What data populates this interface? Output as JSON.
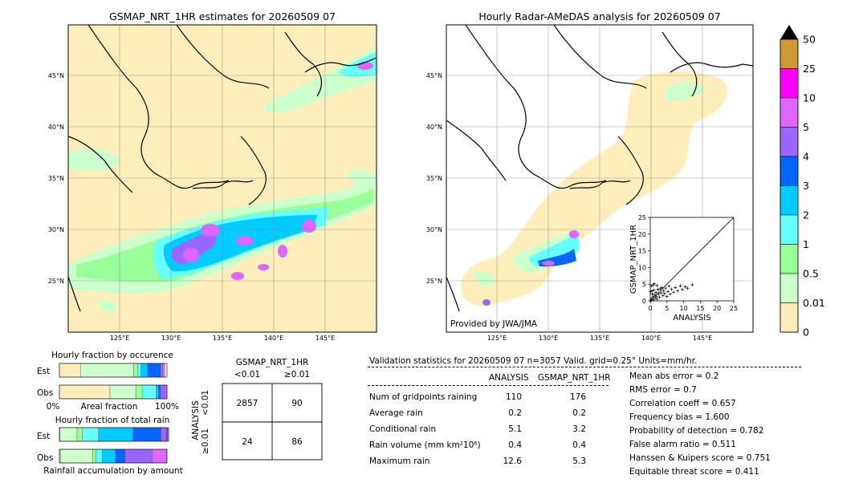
{
  "left_map": {
    "title": "GSMAP_NRT_1HR estimates for 20260509 07",
    "lat_labels": [
      "45°N",
      "40°N",
      "35°N",
      "30°N",
      "25°N"
    ],
    "lon_labels": [
      "125°E",
      "130°E",
      "135°E",
      "140°E",
      "145°E"
    ]
  },
  "right_map": {
    "title": "Hourly Radar-AMeDAS analysis for 20260509 07",
    "lat_labels": [
      "45°N",
      "40°N",
      "35°N",
      "30°N",
      "25°N"
    ],
    "lon_labels": [
      "125°E",
      "130°E",
      "135°E",
      "140°E",
      "145°E"
    ],
    "credit": "Provided by JWA/JMA"
  },
  "colorbar": {
    "labels": [
      "50",
      "25",
      "10",
      "5",
      "4",
      "3",
      "2",
      "1",
      "0.5",
      "0.01",
      "0"
    ],
    "colors": [
      "#cc9933",
      "#ff00ff",
      "#dd66ff",
      "#9966ff",
      "#0066ff",
      "#00ccff",
      "#66ffff",
      "#99ff99",
      "#ccffcc",
      "#ffeebb"
    ],
    "extend_color": "#000000"
  },
  "chart_data": [
    {
      "type": "scatter",
      "xlabel": "ANALYSIS",
      "ylabel": "GSMAP_NRT_1HR",
      "xlim": [
        0,
        25
      ],
      "ylim": [
        0,
        25
      ],
      "ticks": [
        0,
        5,
        10,
        15,
        20,
        25
      ],
      "points": [
        [
          0.2,
          0.1
        ],
        [
          0.4,
          0.6
        ],
        [
          0.6,
          2.1
        ],
        [
          0.8,
          1.2
        ],
        [
          1.0,
          0.3
        ],
        [
          1.1,
          3.2
        ],
        [
          1.3,
          1.8
        ],
        [
          1.5,
          0.9
        ],
        [
          1.7,
          2.5
        ],
        [
          1.9,
          1.4
        ],
        [
          2.1,
          0.5
        ],
        [
          2.3,
          3.4
        ],
        [
          2.5,
          2.0
        ],
        [
          2.8,
          1.1
        ],
        [
          3.0,
          3.6
        ],
        [
          3.2,
          2.4
        ],
        [
          3.5,
          4.0
        ],
        [
          3.8,
          1.6
        ],
        [
          4.0,
          3.0
        ],
        [
          4.3,
          2.2
        ],
        [
          4.6,
          3.8
        ],
        [
          5.0,
          1.3
        ],
        [
          5.3,
          2.8
        ],
        [
          5.6,
          4.4
        ],
        [
          6.0,
          2.0
        ],
        [
          6.4,
          3.5
        ],
        [
          7.0,
          2.6
        ],
        [
          7.5,
          4.0
        ],
        [
          8.2,
          3.0
        ],
        [
          9.0,
          4.5
        ],
        [
          9.6,
          3.4
        ],
        [
          10.5,
          4.2
        ],
        [
          11.2,
          3.8
        ],
        [
          12.6,
          4.8
        ],
        [
          0.3,
          4.5
        ],
        [
          0.5,
          3.0
        ],
        [
          0.9,
          4.8
        ],
        [
          1.2,
          5.1
        ],
        [
          2.0,
          4.6
        ],
        [
          0.1,
          2.8
        ]
      ]
    },
    {
      "type": "bar",
      "title": "Hourly fraction by occurence",
      "categories": [
        "Est",
        "Obs"
      ],
      "xlabel": "Areal fraction",
      "x_tick_left": "0%",
      "x_tick_right": "100%",
      "series": [
        {
          "values": [
            0.2,
            0.47
          ]
        },
        {
          "values": [
            0.49,
            0.24
          ]
        },
        {
          "values": [
            0.04,
            0.06
          ]
        },
        {
          "values": [
            0.03,
            0.13
          ]
        },
        {
          "values": [
            0.06,
            0.02
          ]
        },
        {
          "values": [
            0.12,
            0.02
          ]
        },
        {
          "values": [
            0.02,
            0.04
          ]
        },
        {
          "values": [
            0.02,
            0.02
          ]
        }
      ]
    },
    {
      "type": "bar",
      "title": "Hourly fraction of total rain",
      "categories": [
        "Est",
        "Obs"
      ],
      "xlabel": "Rainfall accumulation by amount",
      "series": [
        {
          "values": [
            0.004,
            0.01
          ]
        },
        {
          "values": [
            0.16,
            0.3
          ]
        },
        {
          "values": [
            0.05,
            0.03
          ]
        },
        {
          "values": [
            0.15,
            0.06
          ]
        },
        {
          "values": [
            0.32,
            0.12
          ]
        },
        {
          "values": [
            0.26,
            0.09
          ]
        },
        {
          "values": [
            0.07,
            0.25
          ]
        },
        {
          "values": [
            0.004,
            0.14
          ]
        }
      ]
    },
    {
      "type": "table",
      "title": "GSMAP_NRT_1HR",
      "col_labels": [
        "<0.01",
        "≥0.01"
      ],
      "row_title": "ANALYSIS",
      "row_labels": [
        "<0.01",
        "≥0.01"
      ],
      "cells": [
        [
          "2857",
          "90"
        ],
        [
          "24",
          "86"
        ]
      ]
    }
  ],
  "validation": {
    "header": "Validation statistics for 20260509 07  n=3057 Valid. grid=0.25° Units=mm/hr.",
    "col_analysis": "ANALYSIS",
    "col_gsmap": "GSMAP_NRT_1HR",
    "rows": [
      {
        "label": "Num of gridpoints raining",
        "analysis": "110",
        "gsmap": "176"
      },
      {
        "label": "Average rain",
        "analysis": "0.2",
        "gsmap": "0.2"
      },
      {
        "label": "Conditional rain",
        "analysis": "5.1",
        "gsmap": "3.2"
      },
      {
        "label": "Rain volume (mm km²10⁶)",
        "analysis": "0.4",
        "gsmap": "0.4"
      },
      {
        "label": "Maximum rain",
        "analysis": "12.6",
        "gsmap": "5.3"
      }
    ],
    "scores": [
      "Mean abs error =    0.2",
      "RMS error =    0.7",
      "Correlation coeff =  0.657",
      "Frequency bias =  1.600",
      "Probability of detection =  0.782",
      "False alarm ratio =  0.511",
      "Hanssen & Kuipers score =  0.751",
      "Equitable threat score =  0.411"
    ]
  }
}
